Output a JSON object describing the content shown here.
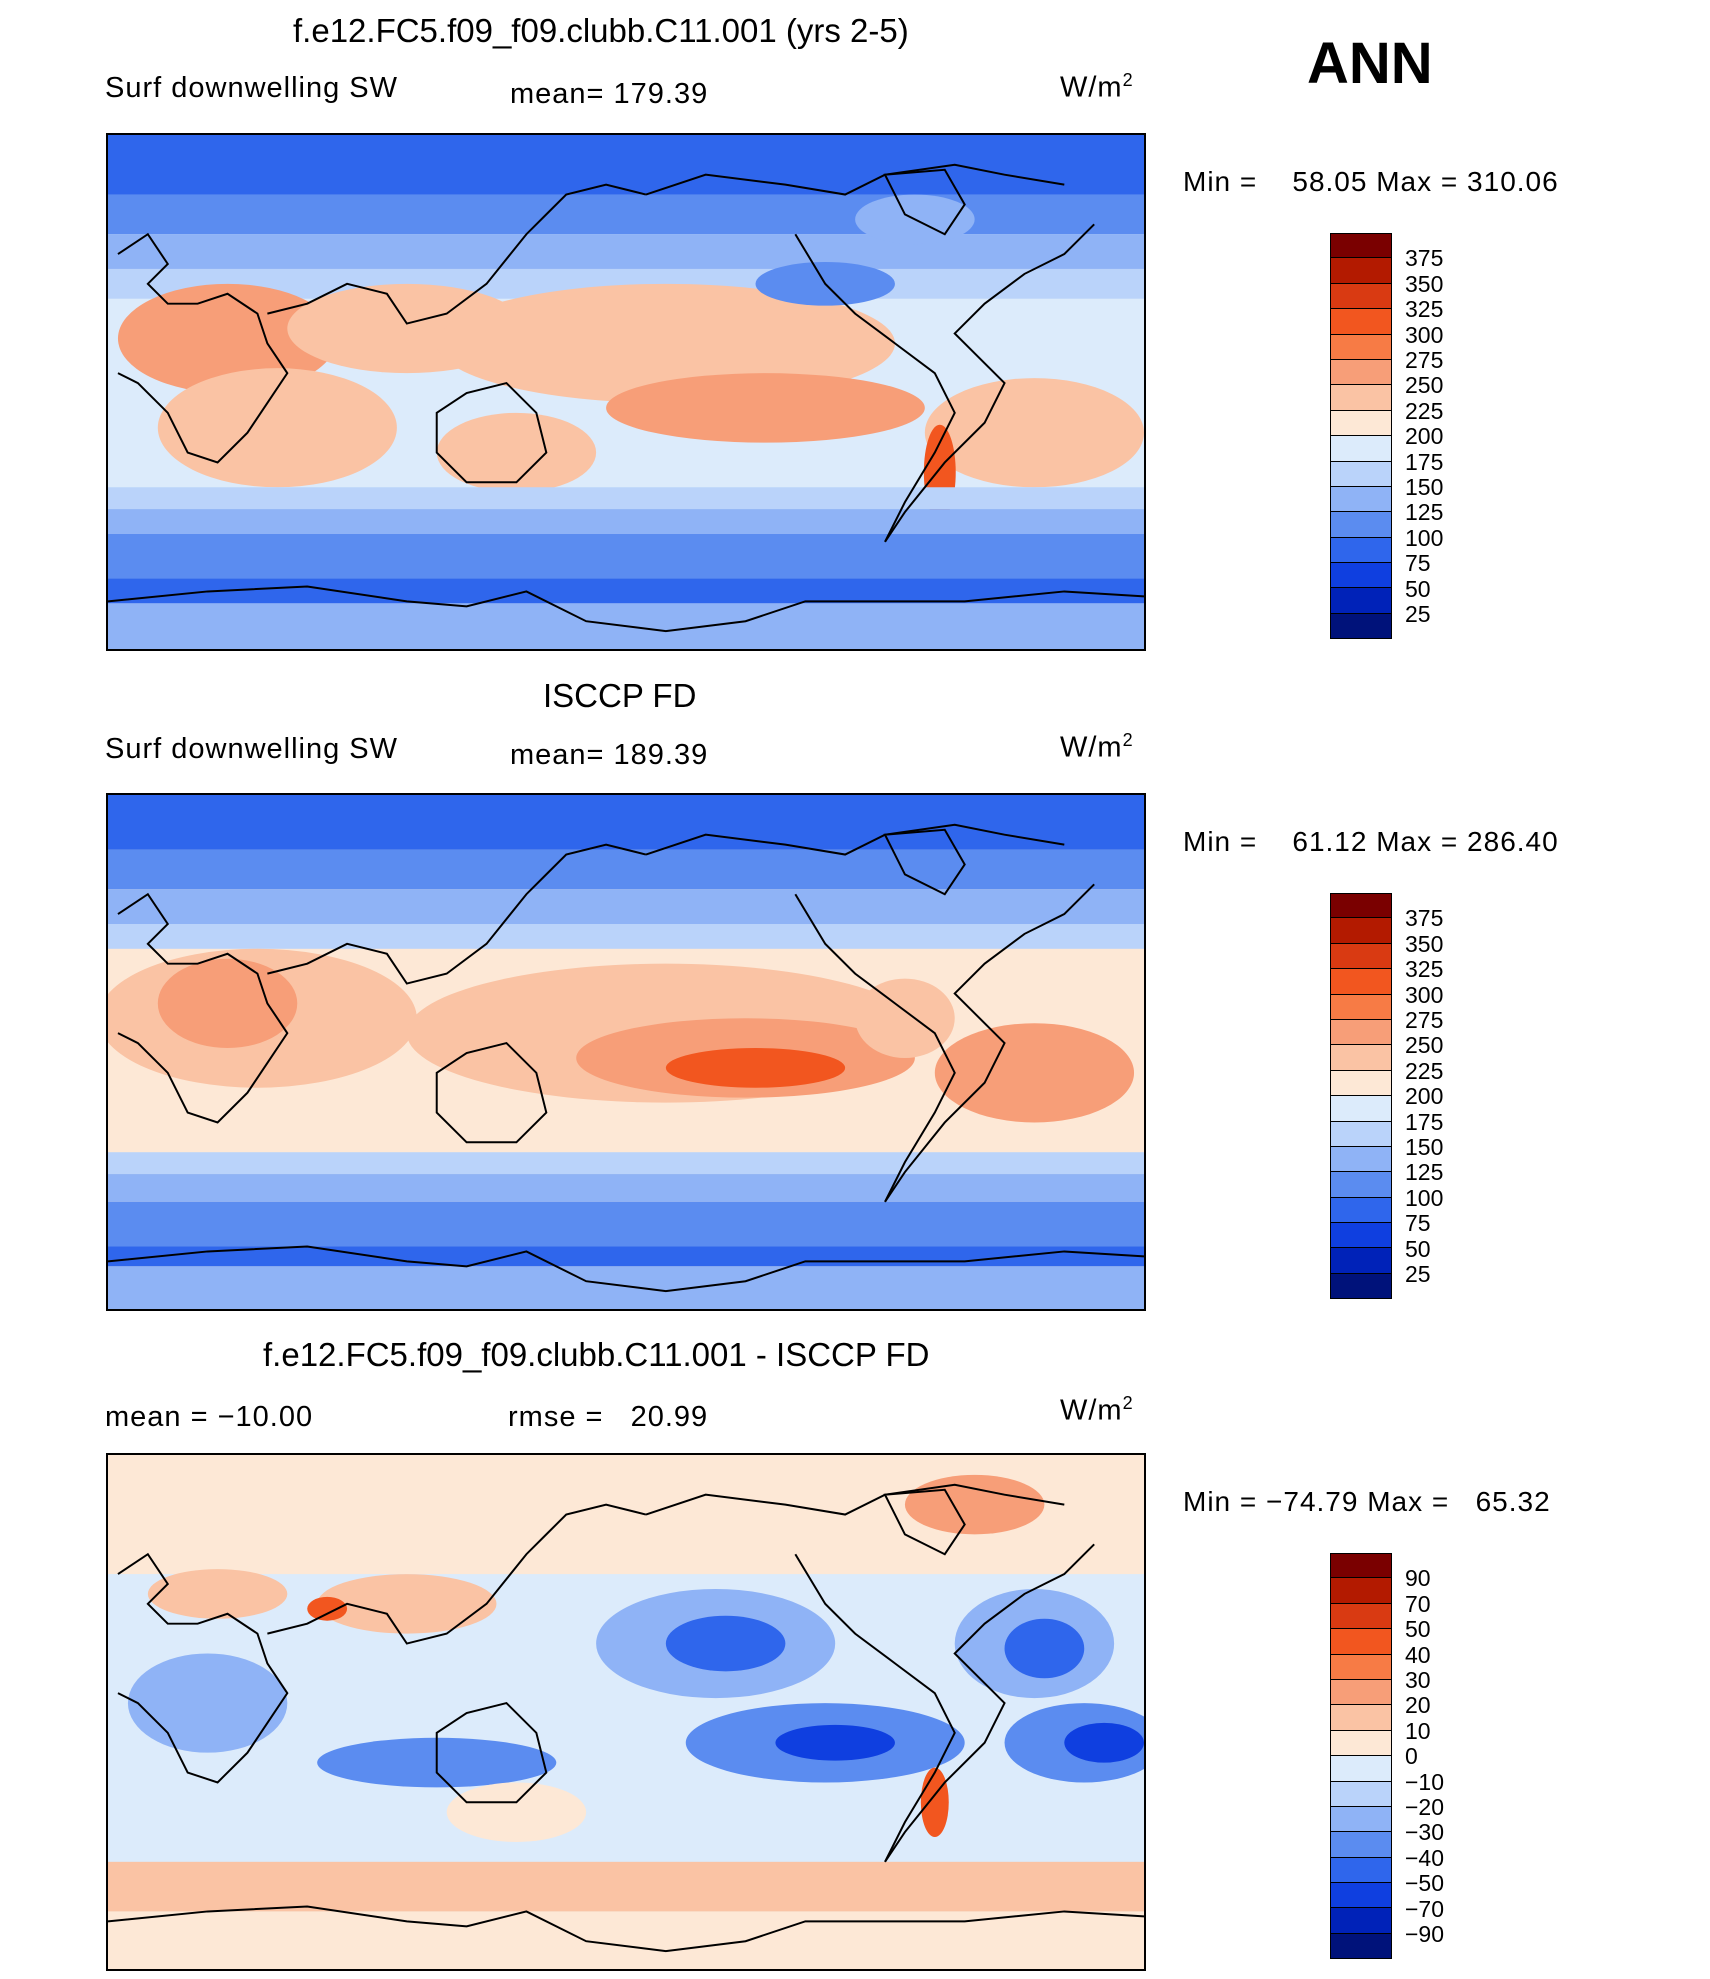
{
  "header": {
    "season": "ANN"
  },
  "panels": [
    {
      "title": "f.e12.FC5.f09_f09.clubb.C11.001 (yrs 2-5)",
      "left_label": "Surf  downwelling  SW",
      "stat_label": "mean=",
      "stat_value": "179.39",
      "units": "W/m",
      "units_sup": "2",
      "min_label": "Min  =",
      "min_value": "58.05",
      "max_label": "Max  =",
      "max_value": "310.06"
    },
    {
      "title": "ISCCP FD",
      "left_label": "Surf  downwelling  SW",
      "stat_label": "mean=",
      "stat_value": "189.39",
      "units": "W/m",
      "units_sup": "2",
      "min_label": "Min  =",
      "min_value": "61.12",
      "max_label": "Max  =",
      "max_value": "286.40"
    },
    {
      "title": "f.e12.FC5.f09_f09.clubb.C11.001 - ISCCP FD",
      "left_label": "mean  =  −10.00",
      "stat_label": "rmse  =",
      "stat_value": "20.99",
      "units": "W/m",
      "units_sup": "2",
      "min_label": "Min  =",
      "min_value": "−74.79",
      "max_label": "Max  =",
      "max_value": "65.32"
    }
  ],
  "chart_data": [
    {
      "type": "heatmap",
      "title": "f.e12.FC5.f09_f09.clubb.C11.001 (yrs 2-5)",
      "field": "Surf downwelling SW",
      "units": "W/m2",
      "mean": 179.39,
      "min": 58.05,
      "max": 310.06,
      "colorbar_levels": [
        375,
        350,
        325,
        300,
        275,
        250,
        225,
        200,
        175,
        150,
        125,
        100,
        75,
        50,
        25
      ]
    },
    {
      "type": "heatmap",
      "title": "ISCCP FD",
      "field": "Surf downwelling SW",
      "units": "W/m2",
      "mean": 189.39,
      "min": 61.12,
      "max": 286.4,
      "colorbar_levels": [
        375,
        350,
        325,
        300,
        275,
        250,
        225,
        200,
        175,
        150,
        125,
        100,
        75,
        50,
        25
      ]
    },
    {
      "type": "heatmap",
      "title": "f.e12.FC5.f09_f09.clubb.C11.001 - ISCCP FD",
      "units": "W/m2",
      "mean": -10.0,
      "rmse": 20.99,
      "min": -74.79,
      "max": 65.32,
      "colorbar_levels": [
        90,
        70,
        50,
        40,
        30,
        20,
        10,
        0,
        -10,
        -20,
        -30,
        -40,
        -50,
        -70,
        -90
      ]
    }
  ],
  "colorbars": [
    {
      "labels": [
        "375",
        "350",
        "325",
        "300",
        "275",
        "250",
        "225",
        "200",
        "175",
        "150",
        "125",
        "100",
        "75",
        "50",
        "25"
      ]
    },
    {
      "labels": [
        "375",
        "350",
        "325",
        "300",
        "275",
        "250",
        "225",
        "200",
        "175",
        "150",
        "125",
        "100",
        "75",
        "50",
        "25"
      ]
    },
    {
      "labels": [
        "90",
        "70",
        "50",
        "40",
        "30",
        "20",
        "10",
        "0",
        "−10",
        "−20",
        "−30",
        "−40",
        "−50",
        "−70",
        "−90"
      ]
    }
  ],
  "colors": {
    "scale": [
      "#7a0000",
      "#b31a00",
      "#d93a12",
      "#f2561f",
      "#f77b45",
      "#f79e78",
      "#fac3a4",
      "#fde8d6",
      "#dcebfb",
      "#bad3fa",
      "#8fb3f6",
      "#5b8cf0",
      "#2f66ec",
      "#0f3fe0",
      "#0022b8",
      "#00127a"
    ]
  }
}
